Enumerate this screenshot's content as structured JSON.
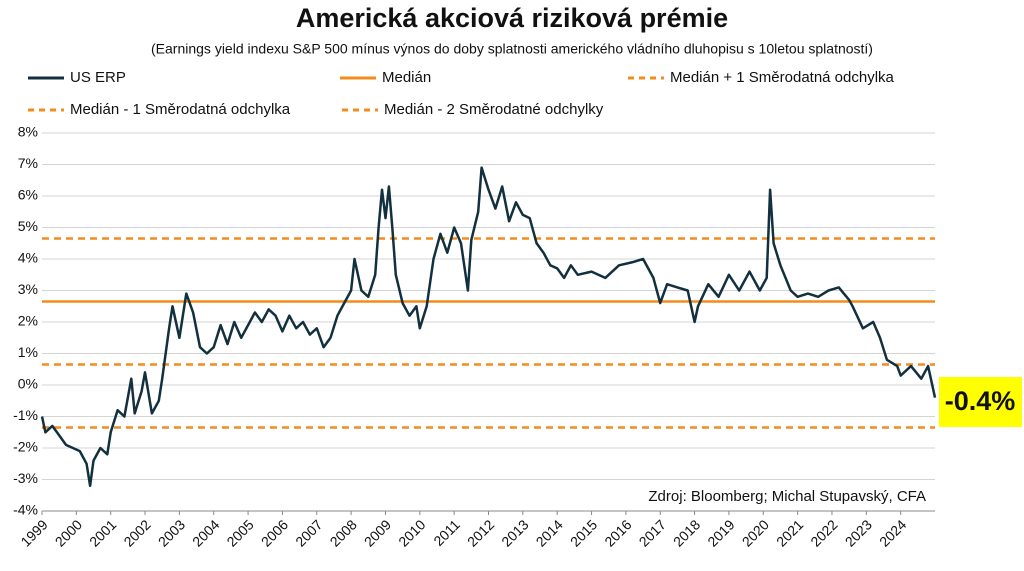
{
  "chart_data": {
    "type": "line",
    "title": "Americká akciová riziková prémie",
    "subtitle": "(Earnings yield indexu S&P 500 mínus výnos do doby splatnosti amerického vládního dluhopisu s 10letou splatností)",
    "annotation": "-0.4%",
    "source": "Zdroj: Bloomberg; Michal Stupavský, CFA",
    "xlim": [
      1999,
      2025
    ],
    "xticks": [
      1999,
      2000,
      2001,
      2002,
      2003,
      2004,
      2005,
      2006,
      2007,
      2008,
      2009,
      2010,
      2011,
      2012,
      2013,
      2014,
      2015,
      2016,
      2017,
      2018,
      2019,
      2020,
      2021,
      2022,
      2023,
      2024
    ],
    "ylim": [
      -4,
      8
    ],
    "yticks": [
      {
        "value": -4,
        "label": "-4%"
      },
      {
        "value": -3,
        "label": "-3%"
      },
      {
        "value": -2,
        "label": "-2%"
      },
      {
        "value": -1,
        "label": "-1%"
      },
      {
        "value": 0,
        "label": "0%"
      },
      {
        "value": 1,
        "label": "1%"
      },
      {
        "value": 2,
        "label": "2%"
      },
      {
        "value": 3,
        "label": "3%"
      },
      {
        "value": 4,
        "label": "4%"
      },
      {
        "value": 5,
        "label": "5%"
      },
      {
        "value": 6,
        "label": "6%"
      },
      {
        "value": 7,
        "label": "7%"
      },
      {
        "value": 8,
        "label": "8%"
      }
    ],
    "grid": true,
    "series": [
      {
        "name": "US ERP",
        "color": "#12303d",
        "dashed": false,
        "x": [
          1999.0,
          1999.1,
          1999.3,
          1999.5,
          1999.7,
          1999.9,
          2000.1,
          2000.3,
          2000.4,
          2000.5,
          2000.7,
          2000.9,
          2001.0,
          2001.2,
          2001.4,
          2001.6,
          2001.7,
          2001.9,
          2002.0,
          2002.2,
          2002.4,
          2002.5,
          2002.7,
          2002.8,
          2003.0,
          2003.2,
          2003.4,
          2003.6,
          2003.8,
          2004.0,
          2004.2,
          2004.4,
          2004.6,
          2004.8,
          2005.0,
          2005.2,
          2005.4,
          2005.6,
          2005.8,
          2006.0,
          2006.2,
          2006.4,
          2006.6,
          2006.8,
          2007.0,
          2007.2,
          2007.4,
          2007.6,
          2007.8,
          2008.0,
          2008.1,
          2008.3,
          2008.5,
          2008.7,
          2008.8,
          2008.9,
          2009.0,
          2009.1,
          2009.2,
          2009.3,
          2009.5,
          2009.7,
          2009.9,
          2010.0,
          2010.2,
          2010.4,
          2010.6,
          2010.8,
          2011.0,
          2011.2,
          2011.4,
          2011.5,
          2011.7,
          2011.8,
          2012.0,
          2012.2,
          2012.4,
          2012.6,
          2012.8,
          2013.0,
          2013.2,
          2013.4,
          2013.6,
          2013.8,
          2014.0,
          2014.2,
          2014.4,
          2014.6,
          2015.0,
          2015.4,
          2015.8,
          2016.2,
          2016.5,
          2016.8,
          2017.0,
          2017.2,
          2017.5,
          2017.8,
          2018.0,
          2018.1,
          2018.4,
          2018.7,
          2019.0,
          2019.3,
          2019.6,
          2019.9,
          2020.1,
          2020.2,
          2020.3,
          2020.5,
          2020.8,
          2021.0,
          2021.3,
          2021.6,
          2021.9,
          2022.2,
          2022.5,
          2022.6,
          2022.9,
          2023.2,
          2023.4,
          2023.6,
          2023.9,
          2024.0,
          2024.3,
          2024.6,
          2024.8,
          2025.0
        ],
        "values": [
          -1.0,
          -1.5,
          -1.3,
          -1.6,
          -1.9,
          -2.0,
          -2.1,
          -2.5,
          -3.2,
          -2.4,
          -2.0,
          -2.2,
          -1.5,
          -0.8,
          -1.0,
          0.2,
          -0.9,
          -0.2,
          0.4,
          -0.9,
          -0.5,
          0.2,
          1.8,
          2.5,
          1.5,
          2.9,
          2.3,
          1.2,
          1.0,
          1.2,
          1.9,
          1.3,
          2.0,
          1.5,
          1.9,
          2.3,
          2.0,
          2.4,
          2.2,
          1.7,
          2.2,
          1.8,
          2.0,
          1.6,
          1.8,
          1.2,
          1.5,
          2.2,
          2.6,
          3.0,
          4.0,
          3.0,
          2.8,
          3.5,
          5.0,
          6.2,
          5.3,
          6.3,
          5.0,
          3.5,
          2.6,
          2.2,
          2.5,
          1.8,
          2.5,
          4.0,
          4.8,
          4.2,
          5.0,
          4.5,
          3.0,
          4.6,
          5.5,
          6.9,
          6.2,
          5.6,
          6.3,
          5.2,
          5.8,
          5.4,
          5.3,
          4.5,
          4.2,
          3.8,
          3.7,
          3.4,
          3.8,
          3.5,
          3.6,
          3.4,
          3.8,
          3.9,
          4.0,
          3.4,
          2.6,
          3.2,
          3.1,
          3.0,
          2.0,
          2.5,
          3.2,
          2.8,
          3.5,
          3.0,
          3.6,
          3.0,
          3.4,
          6.2,
          4.5,
          3.8,
          3.0,
          2.8,
          2.9,
          2.8,
          3.0,
          3.1,
          2.7,
          2.5,
          1.8,
          2.0,
          1.5,
          0.8,
          0.6,
          0.3,
          0.6,
          0.2,
          0.6,
          -0.4
        ]
      },
      {
        "name": "Medián",
        "color": "#f28c1e",
        "dashed": false,
        "x": [
          1999,
          2025
        ],
        "values": [
          2.65,
          2.65
        ]
      },
      {
        "name": "Medián + 1 Směrodatná odchylka",
        "color": "#f28c1e",
        "dashed": true,
        "x": [
          1999,
          2025
        ],
        "values": [
          4.65,
          4.65
        ]
      },
      {
        "name": "Medián - 1 Směrodatná odchylka",
        "color": "#f28c1e",
        "dashed": true,
        "x": [
          1999,
          2025
        ],
        "values": [
          0.65,
          0.65
        ]
      },
      {
        "name": "Medián - 2 Směrodatné odchylky",
        "color": "#f28c1e",
        "dashed": true,
        "x": [
          1999,
          2025
        ],
        "values": [
          -1.35,
          -1.35
        ]
      }
    ]
  }
}
